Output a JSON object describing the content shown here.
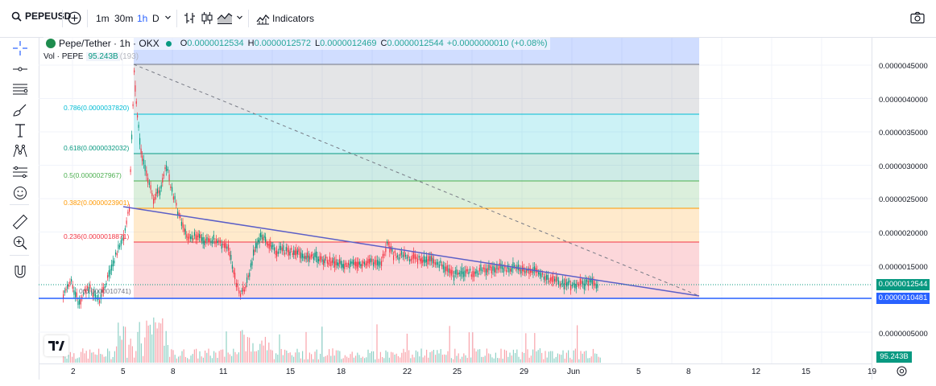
{
  "toolbar": {
    "symbol": "PEPEUSD",
    "intervals": [
      "1m",
      "30m",
      "1h",
      "D"
    ],
    "active_interval": "1h",
    "indicators_label": "Indicators"
  },
  "legend": {
    "title": "Pepe/Tether · 1h · OKX",
    "o_key": "O",
    "o_val": "0.0000012534",
    "h_key": "H",
    "h_val": "0.0000012572",
    "l_key": "L",
    "l_val": "0.0000012469",
    "c_key": "C",
    "c_val": "0.0000012544",
    "change": "+0.0000000010 (+0.08%)"
  },
  "volume": {
    "label": "Vol · PEPE",
    "value": "95.243B",
    "hidden_value": "(193)"
  },
  "fib_levels": [
    {
      "label": "0.786(0.0000037820)",
      "color": "#00bcd4"
    },
    {
      "label": "0.618(0.0000032032)",
      "color": "#089981"
    },
    {
      "label": "0.5(0.0000027967)",
      "color": "#4caf50"
    },
    {
      "label": "0.382(0.0000023901)",
      "color": "#ff9800"
    },
    {
      "label": "0.236(0.0000018871)",
      "color": "#f23645"
    },
    {
      "label": "0(0.0000010741)",
      "color": "#787b86"
    }
  ],
  "price_axis": {
    "labels": [
      "0.0000045000",
      "0.0000040000",
      "0.0000035000",
      "0.0000030000",
      "0.0000025000",
      "0.0000020000",
      "0.0000015000",
      "0.0000005000"
    ],
    "current_price": "0.0000012544",
    "line_price": "0.0000010481",
    "volume_value": "95.243B",
    "current_color": "#089981",
    "line_color": "#2962ff"
  },
  "time_axis": {
    "labels": [
      "2",
      "5",
      "8",
      "11",
      "15",
      "18",
      "22",
      "25",
      "29",
      "Jun",
      "5",
      "8",
      "12",
      "15",
      "19"
    ]
  },
  "colors": {
    "up": "#089981",
    "down": "#f23645",
    "trendline": "#5b5fc7",
    "hline": "#2962ff"
  }
}
